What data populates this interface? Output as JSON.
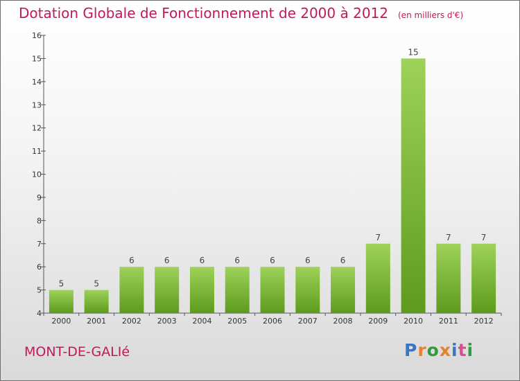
{
  "title": "Dotation Globale de Fonctionnement de 2000 à 2012",
  "unit_note": "(en milliers d'€)",
  "city": "MONT-DE-GALIé",
  "logo": {
    "text": "Proxiti",
    "colors": [
      "#3a76c4",
      "#e8822a",
      "#2e9e3c",
      "#e8822a",
      "#3a76c4",
      "#d64f8e",
      "#2e9e3c"
    ]
  },
  "colors": {
    "accent": "#c2185b",
    "bar_top": "#9ed25a",
    "bar_bottom": "#5d9b1e"
  },
  "chart_data": {
    "type": "bar",
    "categories": [
      "2000",
      "2001",
      "2002",
      "2003",
      "2004",
      "2005",
      "2006",
      "2007",
      "2008",
      "2009",
      "2010",
      "2011",
      "2012"
    ],
    "values": [
      5,
      5,
      6,
      6,
      6,
      6,
      6,
      6,
      6,
      7,
      15,
      7,
      7
    ],
    "y_ticks": [
      "4",
      "5",
      "6",
      "7",
      "8",
      "9",
      "10",
      "11",
      "12",
      "13",
      "14",
      "15",
      "16"
    ],
    "ylim": [
      4,
      16
    ],
    "grid": false
  }
}
